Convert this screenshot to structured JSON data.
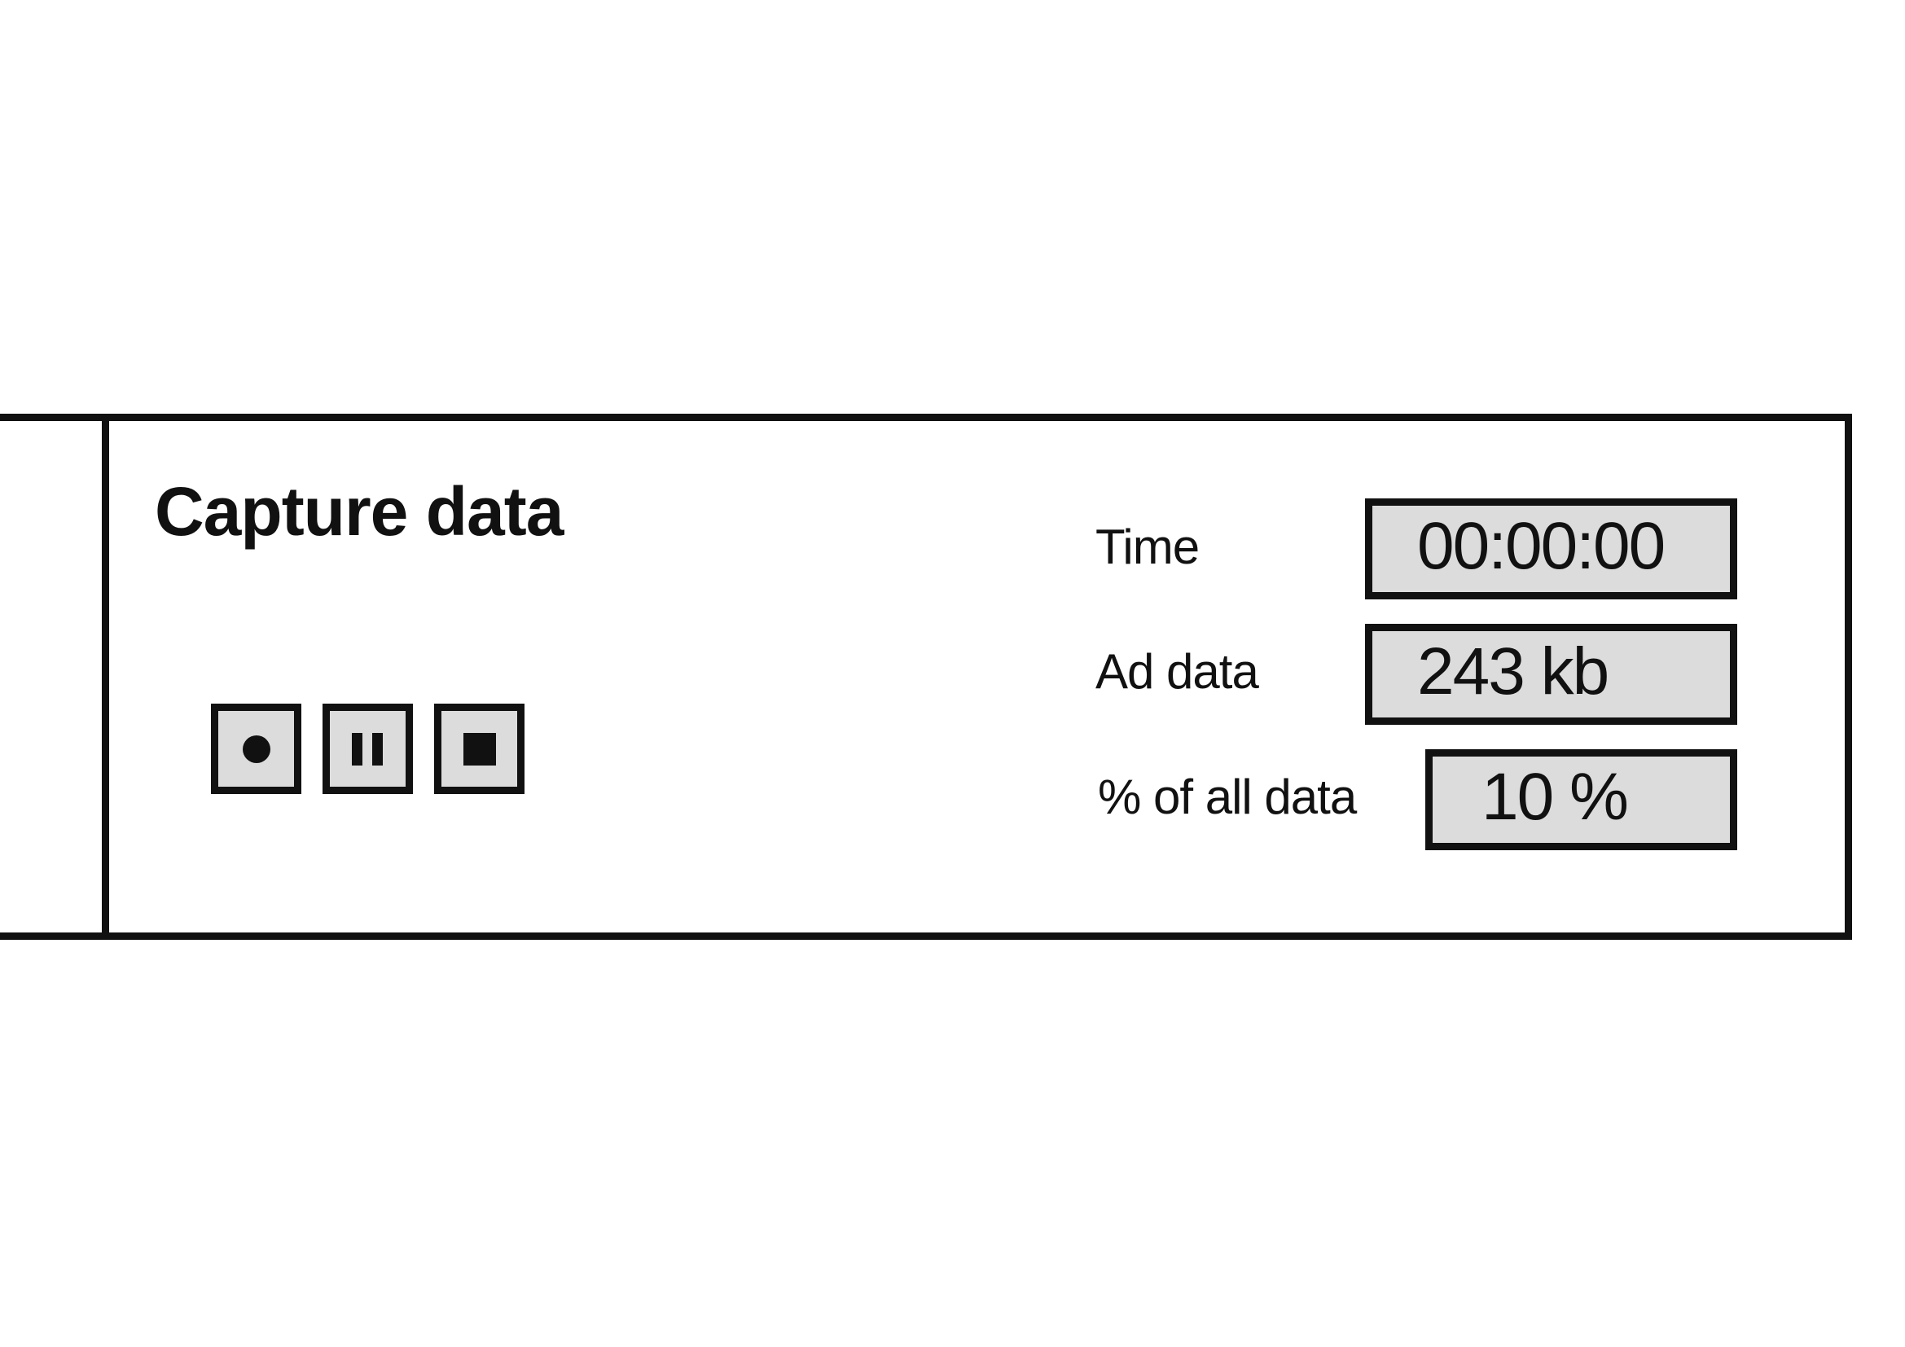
{
  "panel": {
    "title": "Capture data"
  },
  "controls": [
    {
      "name": "record",
      "icon": "record-icon"
    },
    {
      "name": "pause",
      "icon": "pause-icon"
    },
    {
      "name": "stop",
      "icon": "stop-icon"
    }
  ],
  "stats": {
    "time": {
      "label": "Time",
      "value": "00:00:00"
    },
    "ad_data": {
      "label": "Ad data",
      "value": "243 kb"
    },
    "percent_of_all": {
      "label": "% of all data",
      "value": "10 %"
    }
  },
  "colors": {
    "border": "#111111",
    "field_background": "#dcdcdc",
    "page_background": "#ffffff"
  }
}
